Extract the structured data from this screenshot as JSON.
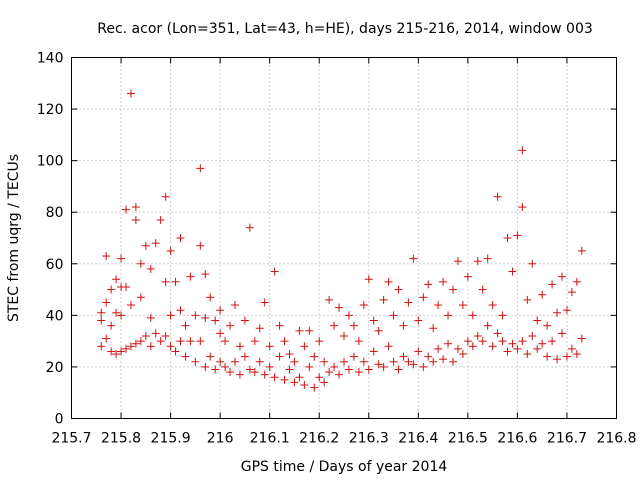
{
  "chart_data": {
    "type": "scatter",
    "title": "Rec. acor (Lon=351, Lat=43, h=HE), days 215-216, 2014, window 003",
    "xlabel": "GPS time / Days of year 2014",
    "ylabel": "STEC from uqrg / TECUs",
    "xlim": [
      215.7,
      216.8
    ],
    "ylim": [
      0,
      140
    ],
    "xticks": [
      "215.7",
      "215.8",
      "215.9",
      "216",
      "216.1",
      "216.2",
      "216.3",
      "216.4",
      "216.5",
      "216.6",
      "216.7",
      "216.8"
    ],
    "yticks": [
      "0",
      "20",
      "40",
      "60",
      "80",
      "100",
      "120",
      "140"
    ],
    "grid": true,
    "legend": "none",
    "marker": "+",
    "color": "#d01010",
    "series": [
      {
        "points": [
          [
            215.76,
            28
          ],
          [
            215.76,
            38
          ],
          [
            215.76,
            41
          ],
          [
            215.77,
            31
          ],
          [
            215.77,
            45
          ],
          [
            215.77,
            63
          ],
          [
            215.78,
            26
          ],
          [
            215.78,
            36
          ],
          [
            215.78,
            50
          ],
          [
            215.79,
            25
          ],
          [
            215.79,
            41
          ],
          [
            215.79,
            54
          ],
          [
            215.8,
            26
          ],
          [
            215.8,
            40
          ],
          [
            215.8,
            51
          ],
          [
            215.8,
            62
          ],
          [
            215.81,
            27
          ],
          [
            215.81,
            81
          ],
          [
            215.81,
            51
          ],
          [
            215.82,
            28
          ],
          [
            215.82,
            44
          ],
          [
            215.82,
            126
          ],
          [
            215.83,
            29
          ],
          [
            215.83,
            77
          ],
          [
            215.83,
            82
          ],
          [
            215.84,
            30
          ],
          [
            215.84,
            47
          ],
          [
            215.84,
            60
          ],
          [
            215.85,
            32
          ],
          [
            215.85,
            67
          ],
          [
            215.86,
            28
          ],
          [
            215.86,
            39
          ],
          [
            215.86,
            58
          ],
          [
            215.87,
            33
          ],
          [
            215.87,
            68
          ],
          [
            215.88,
            30
          ],
          [
            215.88,
            77
          ],
          [
            215.89,
            32
          ],
          [
            215.89,
            86
          ],
          [
            215.89,
            53
          ],
          [
            215.9,
            28
          ],
          [
            215.9,
            40
          ],
          [
            215.9,
            65
          ],
          [
            215.91,
            26
          ],
          [
            215.91,
            53
          ],
          [
            215.92,
            30
          ],
          [
            215.92,
            42
          ],
          [
            215.92,
            70
          ],
          [
            215.93,
            24
          ],
          [
            215.93,
            36
          ],
          [
            215.94,
            30
          ],
          [
            215.94,
            55
          ],
          [
            215.95,
            22
          ],
          [
            215.95,
            40
          ],
          [
            215.96,
            30
          ],
          [
            215.96,
            97
          ],
          [
            215.96,
            67
          ],
          [
            215.97,
            20
          ],
          [
            215.97,
            39
          ],
          [
            215.97,
            56
          ],
          [
            215.98,
            24
          ],
          [
            215.98,
            47
          ],
          [
            215.99,
            19
          ],
          [
            215.99,
            38
          ],
          [
            216.0,
            22
          ],
          [
            216.0,
            33
          ],
          [
            216.0,
            42
          ],
          [
            216.01,
            20
          ],
          [
            216.01,
            30
          ],
          [
            216.02,
            18
          ],
          [
            216.02,
            36
          ],
          [
            216.03,
            22
          ],
          [
            216.03,
            44
          ],
          [
            216.04,
            17
          ],
          [
            216.04,
            28
          ],
          [
            216.05,
            24
          ],
          [
            216.05,
            38
          ],
          [
            216.06,
            19
          ],
          [
            216.06,
            74
          ],
          [
            216.07,
            18
          ],
          [
            216.07,
            30
          ],
          [
            216.08,
            22
          ],
          [
            216.08,
            35
          ],
          [
            216.09,
            17
          ],
          [
            216.09,
            45
          ],
          [
            216.1,
            20
          ],
          [
            216.1,
            28
          ],
          [
            216.11,
            16
          ],
          [
            216.11,
            57
          ],
          [
            216.12,
            24
          ],
          [
            216.12,
            36
          ],
          [
            216.13,
            15
          ],
          [
            216.13,
            30
          ],
          [
            216.14,
            19
          ],
          [
            216.14,
            25
          ],
          [
            216.15,
            14
          ],
          [
            216.15,
            22
          ],
          [
            216.16,
            16
          ],
          [
            216.16,
            34
          ],
          [
            216.17,
            13
          ],
          [
            216.17,
            28
          ],
          [
            216.18,
            20
          ],
          [
            216.18,
            34
          ],
          [
            216.19,
            12
          ],
          [
            216.19,
            24
          ],
          [
            216.2,
            16
          ],
          [
            216.2,
            30
          ],
          [
            216.21,
            14
          ],
          [
            216.21,
            22
          ],
          [
            216.22,
            18
          ],
          [
            216.22,
            46
          ],
          [
            216.23,
            20
          ],
          [
            216.23,
            36
          ],
          [
            216.24,
            17
          ],
          [
            216.24,
            43
          ],
          [
            216.25,
            22
          ],
          [
            216.25,
            32
          ],
          [
            216.26,
            19
          ],
          [
            216.26,
            40
          ],
          [
            216.27,
            24
          ],
          [
            216.27,
            36
          ],
          [
            216.28,
            18
          ],
          [
            216.28,
            30
          ],
          [
            216.29,
            22
          ],
          [
            216.29,
            44
          ],
          [
            216.3,
            19
          ],
          [
            216.3,
            54
          ],
          [
            216.31,
            26
          ],
          [
            216.31,
            38
          ],
          [
            216.32,
            21
          ],
          [
            216.32,
            34
          ],
          [
            216.33,
            20
          ],
          [
            216.33,
            46
          ],
          [
            216.34,
            28
          ],
          [
            216.34,
            53
          ],
          [
            216.35,
            22
          ],
          [
            216.35,
            40
          ],
          [
            216.36,
            19
          ],
          [
            216.36,
            50
          ],
          [
            216.37,
            24
          ],
          [
            216.37,
            36
          ],
          [
            216.38,
            22
          ],
          [
            216.38,
            45
          ],
          [
            216.39,
            21
          ],
          [
            216.39,
            62
          ],
          [
            216.4,
            26
          ],
          [
            216.4,
            38
          ],
          [
            216.41,
            20
          ],
          [
            216.41,
            47
          ],
          [
            216.42,
            24
          ],
          [
            216.42,
            52
          ],
          [
            216.43,
            22
          ],
          [
            216.43,
            35
          ],
          [
            216.44,
            27
          ],
          [
            216.44,
            44
          ],
          [
            216.45,
            23
          ],
          [
            216.45,
            53
          ],
          [
            216.46,
            29
          ],
          [
            216.46,
            40
          ],
          [
            216.47,
            22
          ],
          [
            216.47,
            50
          ],
          [
            216.48,
            27
          ],
          [
            216.48,
            61
          ],
          [
            216.49,
            25
          ],
          [
            216.49,
            44
          ],
          [
            216.5,
            30
          ],
          [
            216.5,
            55
          ],
          [
            216.51,
            28
          ],
          [
            216.51,
            40
          ],
          [
            216.52,
            32
          ],
          [
            216.52,
            61
          ],
          [
            216.53,
            30
          ],
          [
            216.53,
            50
          ],
          [
            216.54,
            36
          ],
          [
            216.54,
            62
          ],
          [
            216.55,
            28
          ],
          [
            216.55,
            44
          ],
          [
            216.56,
            33
          ],
          [
            216.56,
            86
          ],
          [
            216.57,
            30
          ],
          [
            216.57,
            40
          ],
          [
            216.58,
            26
          ],
          [
            216.58,
            70
          ],
          [
            216.59,
            29
          ],
          [
            216.59,
            57
          ],
          [
            216.6,
            27
          ],
          [
            216.6,
            71
          ],
          [
            216.61,
            30
          ],
          [
            216.61,
            104
          ],
          [
            216.61,
            82
          ],
          [
            216.62,
            25
          ],
          [
            216.62,
            46
          ],
          [
            216.63,
            32
          ],
          [
            216.63,
            60
          ],
          [
            216.64,
            27
          ],
          [
            216.64,
            38
          ],
          [
            216.65,
            29
          ],
          [
            216.65,
            48
          ],
          [
            216.66,
            24
          ],
          [
            216.66,
            36
          ],
          [
            216.67,
            30
          ],
          [
            216.67,
            52
          ],
          [
            216.68,
            23
          ],
          [
            216.68,
            41
          ],
          [
            216.69,
            33
          ],
          [
            216.69,
            55
          ],
          [
            216.7,
            24
          ],
          [
            216.7,
            42
          ],
          [
            216.71,
            27
          ],
          [
            216.71,
            49
          ],
          [
            216.72,
            25
          ],
          [
            216.72,
            53
          ],
          [
            216.73,
            31
          ],
          [
            216.73,
            65
          ]
        ]
      }
    ]
  }
}
